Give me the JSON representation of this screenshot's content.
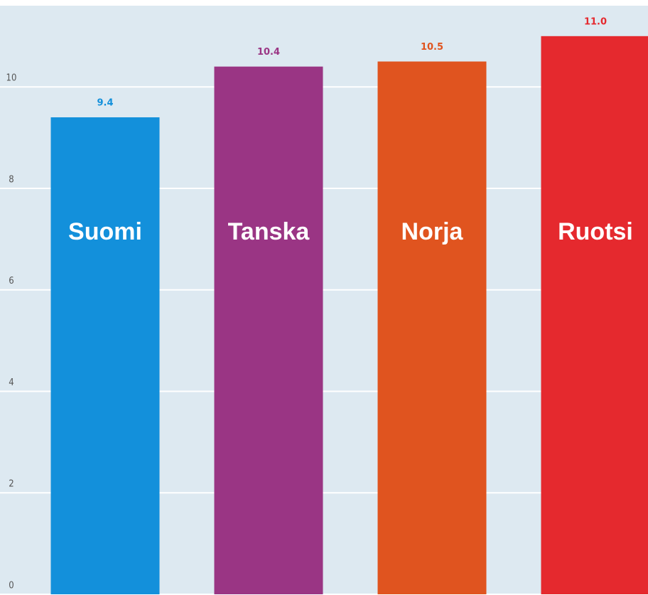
{
  "chart_data": {
    "type": "bar",
    "categories": [
      "Suomi",
      "Tanska",
      "Norja",
      "Ruotsi"
    ],
    "values": [
      9.4,
      10.4,
      10.5,
      11.0
    ],
    "value_labels": [
      "9.4",
      "10.4",
      "10.5",
      "11.0"
    ],
    "colors": [
      "#1390db",
      "#9a3584",
      "#e0541f",
      "#e5292e"
    ],
    "ylim": [
      0,
      11.6
    ],
    "yticks": [
      0,
      2,
      4,
      6,
      8,
      10
    ],
    "grid": true
  }
}
